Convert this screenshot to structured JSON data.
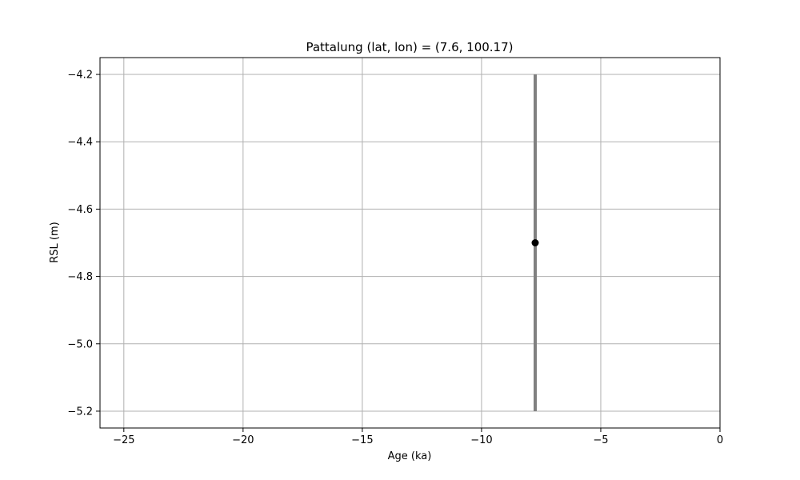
{
  "chart_data": {
    "type": "scatter",
    "title": "Pattalung (lat, lon) = (7.6, 100.17)",
    "xlabel": "Age (ka)",
    "ylabel": "RSL (m)",
    "xlim": [
      -26,
      0
    ],
    "ylim": [
      -5.25,
      -4.15
    ],
    "x_ticks": [
      -25,
      -20,
      -15,
      -10,
      -5,
      0
    ],
    "x_tick_labels": [
      "−25",
      "−20",
      "−15",
      "−10",
      "−5",
      "0"
    ],
    "y_ticks": [
      -4.2,
      -4.4,
      -4.6,
      -4.8,
      -5.0,
      -5.2
    ],
    "y_tick_labels": [
      "−4.2",
      "−4.4",
      "−4.6",
      "−4.8",
      "−5.0",
      "−5.2"
    ],
    "grid": true,
    "points": [
      {
        "x": -7.75,
        "y": -4.7,
        "y_low": -5.2,
        "y_high": -4.2
      }
    ],
    "colors": {
      "point": "#000000",
      "error_bar": "#808080",
      "grid": "#b0b0b0",
      "axes": "#000000"
    }
  }
}
